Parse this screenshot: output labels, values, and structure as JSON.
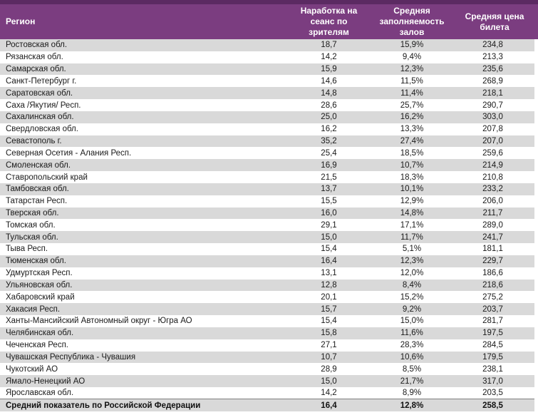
{
  "colors": {
    "top_strip": "#5b2a62",
    "header_background": "#7b3d80",
    "header_text": "#ffffff",
    "row_alt_gray": "#d9d9d9",
    "row_white": "#ffffff",
    "body_text": "#1a1a1a",
    "total_row_border": "#7f7f7f"
  },
  "table": {
    "columns": [
      {
        "key": "region",
        "label": "Регион"
      },
      {
        "key": "viewers_per_session",
        "label": "Наработка на сеанс по зрителям"
      },
      {
        "key": "avg_hall_occupancy",
        "label": "Средняя заполняемость залов"
      },
      {
        "key": "avg_ticket_price",
        "label": "Средняя цена билета"
      }
    ],
    "rows": [
      [
        "Ростовская обл.",
        "18,7",
        "15,9%",
        "234,8"
      ],
      [
        "Рязанская обл.",
        "14,2",
        "9,4%",
        "213,3"
      ],
      [
        "Самарская обл.",
        "15,9",
        "12,3%",
        "235,6"
      ],
      [
        "Санкт-Петербург г.",
        "14,6",
        "11,5%",
        "268,9"
      ],
      [
        "Саратовская обл.",
        "14,8",
        "11,4%",
        "218,1"
      ],
      [
        "Саха /Якутия/ Респ.",
        "28,6",
        "25,7%",
        "290,7"
      ],
      [
        "Сахалинская обл.",
        "25,0",
        "16,2%",
        "303,0"
      ],
      [
        "Свердловская обл.",
        "16,2",
        "13,3%",
        "207,8"
      ],
      [
        "Севастополь г.",
        "35,2",
        "27,4%",
        "207,0"
      ],
      [
        "Северная Осетия - Алания Респ.",
        "25,4",
        "18,5%",
        "259,6"
      ],
      [
        "Смоленская обл.",
        "16,9",
        "10,7%",
        "214,9"
      ],
      [
        "Ставропольский край",
        "21,5",
        "18,3%",
        "210,8"
      ],
      [
        "Тамбовская обл.",
        "13,7",
        "10,1%",
        "233,2"
      ],
      [
        "Татарстан Респ.",
        "15,5",
        "12,9%",
        "206,0"
      ],
      [
        "Тверская обл.",
        "16,0",
        "14,8%",
        "211,7"
      ],
      [
        "Томская обл.",
        "29,1",
        "17,1%",
        "289,0"
      ],
      [
        "Тульская обл.",
        "15,0",
        "11,7%",
        "241,7"
      ],
      [
        "Тыва Респ.",
        "15,4",
        "5,1%",
        "181,1"
      ],
      [
        "Тюменская обл.",
        "16,4",
        "12,3%",
        "229,7"
      ],
      [
        "Удмуртская Респ.",
        "13,1",
        "12,0%",
        "186,6"
      ],
      [
        "Ульяновская обл.",
        "12,8",
        "8,4%",
        "218,6"
      ],
      [
        "Хабаровский край",
        "20,1",
        "15,2%",
        "275,2"
      ],
      [
        "Хакасия Респ.",
        "15,7",
        "9,2%",
        "203,7"
      ],
      [
        "Ханты-Мансийский Автономный округ - Югра АО",
        "15,4",
        "15,0%",
        "281,7"
      ],
      [
        "Челябинская обл.",
        "15,8",
        "11,6%",
        "197,5"
      ],
      [
        "Чеченская Респ.",
        "27,1",
        "28,3%",
        "284,5"
      ],
      [
        "Чувашская Республика - Чувашия",
        "10,7",
        "10,6%",
        "179,5"
      ],
      [
        "Чукотский АО",
        "28,9",
        "8,5%",
        "238,1"
      ],
      [
        "Ямало-Ненецкий АО",
        "15,0",
        "21,7%",
        "317,0"
      ],
      [
        "Ярославская обл.",
        "14,2",
        "8,9%",
        "203,5"
      ]
    ],
    "total_row": [
      "Средний показатель по Российской Федерации",
      "16,4",
      "12,8%",
      "258,5"
    ]
  }
}
